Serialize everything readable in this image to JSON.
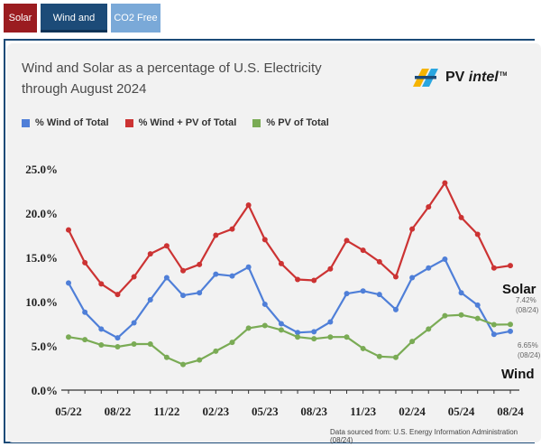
{
  "tabs": [
    {
      "label": "Solar",
      "color": "#9b1c20"
    },
    {
      "label": "Wind and Solar",
      "color": "#1c4b78"
    },
    {
      "label": "CO2 Free",
      "color": "#7aa9d8"
    }
  ],
  "logo": {
    "name": "PV",
    "name_italic": "intel",
    "tm": "TM"
  },
  "source": "Data sourced from: U.S. Energy Information Administration (08/24)",
  "end_labels": {
    "solar": "Solar",
    "solar_note": "7.42%\n(08/24)",
    "wind": "Wind",
    "wind_note": "6.65%\n(08/24)"
  },
  "chart_data": {
    "type": "line",
    "title": "Wind and Solar as a percentage of U.S. Electricity through August 2024",
    "title_lines": [
      "Wind and Solar as a percentage of U.S. Electricity",
      "through August 2024"
    ],
    "xlabel": "",
    "ylabel": "",
    "ylim": [
      0,
      25
    ],
    "y_ticks": [
      0,
      5,
      10,
      15,
      20,
      25
    ],
    "y_tick_labels": [
      "0.0%",
      "5.0%",
      "10.0%",
      "15.0%",
      "20.0%",
      "25.0%"
    ],
    "x_tick_labels": [
      "05/22",
      "08/22",
      "11/22",
      "02/23",
      "05/23",
      "08/23",
      "11/23",
      "02/24",
      "05/24",
      "08/24"
    ],
    "x": [
      "05/22",
      "06/22",
      "07/22",
      "08/22",
      "09/22",
      "10/22",
      "11/22",
      "12/22",
      "01/23",
      "02/23",
      "03/23",
      "04/23",
      "05/23",
      "06/23",
      "07/23",
      "08/23",
      "09/23",
      "10/23",
      "11/23",
      "12/23",
      "01/24",
      "02/24",
      "03/24",
      "04/24",
      "05/24",
      "06/24",
      "07/24",
      "08/24"
    ],
    "grid": false,
    "legend": "top-left",
    "series": [
      {
        "name": "% Wind of Total",
        "color": "#4f7fd8",
        "values": [
          12.1,
          8.8,
          6.9,
          5.9,
          7.6,
          10.2,
          12.7,
          10.7,
          11.0,
          13.1,
          12.9,
          13.9,
          9.7,
          7.5,
          6.5,
          6.6,
          7.7,
          10.9,
          11.2,
          10.8,
          9.1,
          12.7,
          13.8,
          14.8,
          11.0,
          9.6,
          6.3,
          6.65
        ]
      },
      {
        "name": "% Wind + PV of Total",
        "color": "#cc3333",
        "values": [
          18.1,
          14.4,
          12.0,
          10.8,
          12.8,
          15.4,
          16.3,
          13.5,
          14.2,
          17.5,
          18.2,
          20.9,
          17.0,
          14.3,
          12.5,
          12.4,
          13.7,
          16.9,
          15.8,
          14.5,
          12.8,
          18.2,
          20.7,
          23.4,
          19.5,
          17.6,
          13.8,
          14.07
        ]
      },
      {
        "name": "% PV of Total",
        "color": "#7aab55",
        "values": [
          6.0,
          5.7,
          5.1,
          4.9,
          5.2,
          5.2,
          3.7,
          2.9,
          3.4,
          4.4,
          5.4,
          7.0,
          7.3,
          6.8,
          6.0,
          5.8,
          6.0,
          6.0,
          4.7,
          3.8,
          3.7,
          5.5,
          6.9,
          8.4,
          8.5,
          8.1,
          7.4,
          7.42
        ]
      }
    ]
  }
}
